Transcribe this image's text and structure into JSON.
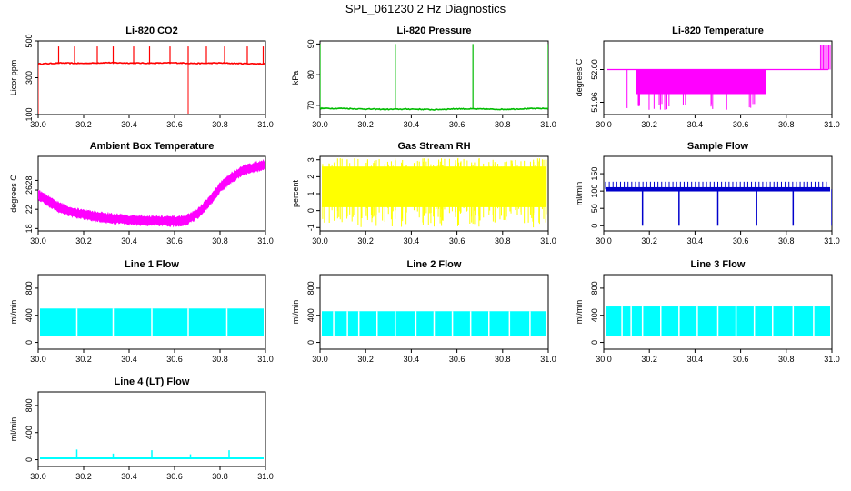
{
  "title": "SPL_061230  2 Hz Diagnostics",
  "chart_data": [
    {
      "id": "co2",
      "type": "line",
      "title": "Li-820 CO2",
      "ylabel": "Licor ppm",
      "color": "#ff0000",
      "xlim": [
        30.0,
        31.0
      ],
      "ylim": [
        100,
        500
      ],
      "xticks": [
        "30.0",
        "30.2",
        "30.4",
        "30.6",
        "30.8",
        "31.0"
      ],
      "yticks": [
        100,
        300,
        500
      ],
      "x": [
        30.0,
        30.1,
        30.2,
        30.3,
        30.4,
        30.5,
        30.6,
        30.7,
        30.8,
        30.9,
        31.0
      ],
      "y": [
        375,
        380,
        378,
        382,
        380,
        379,
        381,
        378,
        380,
        377,
        376
      ],
      "spikes_up": [
        30.09,
        30.16,
        30.26,
        30.33,
        30.42,
        30.49,
        30.58,
        30.66,
        30.74,
        30.82,
        30.92,
        30.99
      ],
      "dips": [
        30.0,
        30.66
      ]
    },
    {
      "id": "pressure",
      "type": "line",
      "title": "Li-820 Pressure",
      "ylabel": "kPa",
      "color": "#00bb00",
      "xlim": [
        30.0,
        31.0
      ],
      "ylim": [
        67,
        91
      ],
      "xticks": [
        "30.0",
        "30.2",
        "30.4",
        "30.6",
        "30.8",
        "31.0"
      ],
      "yticks": [
        70,
        80,
        90
      ],
      "x": [
        30.0,
        30.1,
        30.2,
        30.3,
        30.4,
        30.5,
        30.6,
        30.7,
        30.8,
        30.9,
        31.0
      ],
      "y": [
        69,
        69,
        68.8,
        68.7,
        68.8,
        68.6,
        68.9,
        68.8,
        68.7,
        68.9,
        69
      ],
      "spikes_up": [
        30.0,
        30.33,
        30.67,
        31.0
      ]
    },
    {
      "id": "temperature",
      "type": "line",
      "title": "Li-820 Temperature",
      "ylabel": "degrees C",
      "color": "#ff00ff",
      "xlim": [
        30.0,
        31.0
      ],
      "ylim": [
        51.945,
        52.035
      ],
      "xticks": [
        "30.0",
        "30.2",
        "30.4",
        "30.6",
        "30.8",
        "31.0"
      ],
      "yticks": [
        51.96,
        52.0
      ],
      "yticklabels": [
        "51.96",
        "52.00"
      ],
      "baseline": 52.0,
      "block_range": [
        30.14,
        30.71
      ]
    },
    {
      "id": "ambient",
      "type": "line",
      "title": "Ambient Box Temperature",
      "ylabel": "degrees C",
      "color": "#ff00ff",
      "xlim": [
        30.0,
        31.0
      ],
      "ylim": [
        17.5,
        33
      ],
      "xticks": [
        "30.0",
        "30.2",
        "30.4",
        "30.6",
        "30.8",
        "31.0"
      ],
      "yticks": [
        18,
        22,
        26,
        28
      ],
      "x": [
        30.0,
        30.05,
        30.1,
        30.15,
        30.2,
        30.3,
        30.4,
        30.5,
        30.6,
        30.65,
        30.7,
        30.75,
        30.8,
        30.85,
        30.9,
        30.95,
        31.0
      ],
      "y": [
        25,
        23.5,
        22.2,
        21.4,
        20.9,
        20.2,
        19.8,
        19.6,
        19.5,
        19.7,
        21,
        23.5,
        26.5,
        28.6,
        30,
        30.8,
        31.2
      ]
    },
    {
      "id": "rh",
      "type": "line",
      "title": "Gas Stream RH",
      "ylabel": "percent",
      "color": "#ffff00",
      "xlim": [
        30.0,
        31.0
      ],
      "ylim": [
        -1.2,
        3.2
      ],
      "xticks": [
        "30.0",
        "30.2",
        "30.4",
        "30.6",
        "30.8",
        "31.0"
      ],
      "yticks": [
        -1,
        0,
        1,
        2,
        3
      ],
      "band": [
        0.2,
        2.6
      ]
    },
    {
      "id": "sample",
      "type": "line",
      "title": "Sample Flow",
      "ylabel": "ml/min",
      "color": "#0000cc",
      "xlim": [
        30.0,
        31.0
      ],
      "ylim": [
        -15,
        200
      ],
      "xticks": [
        "30.0",
        "30.2",
        "30.4",
        "30.6",
        "30.8",
        "31.0"
      ],
      "yticks": [
        0,
        50,
        100,
        150
      ],
      "level": 105,
      "dips": [
        30.17,
        30.33,
        30.5,
        30.67,
        30.83,
        31.0
      ]
    },
    {
      "id": "line1",
      "type": "line",
      "title": "Line 1 Flow",
      "ylabel": "ml/min",
      "color": "#00ffff",
      "xlim": [
        30.0,
        31.0
      ],
      "ylim": [
        -100,
        1000
      ],
      "xticks": [
        "30.0",
        "30.2",
        "30.4",
        "30.6",
        "30.8",
        "31.0"
      ],
      "yticks": [
        0,
        400,
        800
      ],
      "band": [
        100,
        500
      ],
      "gaps": [
        30.17,
        30.33,
        30.5,
        30.66,
        30.83
      ]
    },
    {
      "id": "line2",
      "type": "line",
      "title": "Line 2 Flow",
      "ylabel": "ml/min",
      "color": "#00ffff",
      "xlim": [
        30.0,
        31.0
      ],
      "ylim": [
        -100,
        1000
      ],
      "xticks": [
        "30.0",
        "30.2",
        "30.4",
        "30.6",
        "30.8",
        "31.0"
      ],
      "yticks": [
        0,
        400,
        800
      ],
      "band": [
        100,
        460
      ],
      "gaps": [
        30.06,
        30.12,
        30.17,
        30.25,
        30.33,
        30.42,
        30.5,
        30.58,
        30.66,
        30.74,
        30.83,
        30.92
      ]
    },
    {
      "id": "line3",
      "type": "line",
      "title": "Line 3 Flow",
      "ylabel": "ml/min",
      "color": "#00ffff",
      "xlim": [
        30.0,
        31.0
      ],
      "ylim": [
        -100,
        1000
      ],
      "xticks": [
        "30.0",
        "30.2",
        "30.4",
        "30.6",
        "30.8",
        "31.0"
      ],
      "yticks": [
        0,
        400,
        800
      ],
      "band": [
        100,
        530
      ],
      "gaps": [
        30.08,
        30.12,
        30.17,
        30.25,
        30.33,
        30.41,
        30.5,
        30.58,
        30.66,
        30.74,
        30.83,
        30.92
      ]
    },
    {
      "id": "line4",
      "type": "line",
      "title": "Line 4 (LT) Flow",
      "ylabel": "ml/min",
      "color": "#00ffff",
      "xlim": [
        30.0,
        31.0
      ],
      "ylim": [
        -100,
        1000
      ],
      "xticks": [
        "30.0",
        "30.2",
        "30.4",
        "30.6",
        "30.8",
        "31.0"
      ],
      "yticks": [
        0,
        400,
        800
      ],
      "level": 20,
      "spikes_up": [
        30.17,
        30.33,
        30.5,
        30.67,
        30.84,
        31.0
      ],
      "spike_tops": [
        150,
        90,
        140,
        80,
        140,
        90
      ]
    }
  ]
}
